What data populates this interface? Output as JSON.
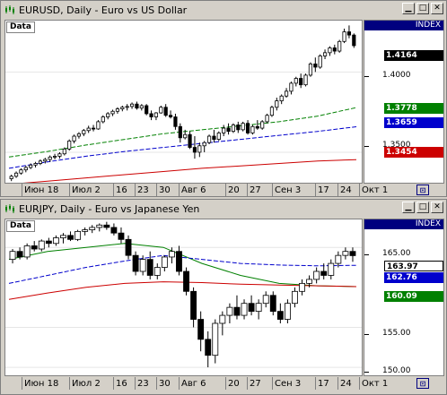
{
  "windows": [
    {
      "title": "EURUSD, Daily - Euro vs US Dollar",
      "data_label": "Data",
      "index_label": "INDEX",
      "price_ticks": [
        "1.4000",
        "1.3500"
      ],
      "price_labels": [
        {
          "value": "1.4164",
          "color": "#000000",
          "text_color": "#ffffff"
        },
        {
          "value": "1.3778",
          "color": "#008000",
          "text_color": "#ffffff"
        },
        {
          "value": "1.3659",
          "color": "#0000cc",
          "text_color": "#ffffff"
        },
        {
          "value": "1.3454",
          "color": "#cc0000",
          "text_color": "#ffffff"
        }
      ],
      "x_labels": [
        "Июн 18",
        "Июл 2",
        "16",
        "23",
        "30",
        "Авг 6",
        "20",
        "27",
        "Сен 3",
        "17",
        "24",
        "Окт 1"
      ],
      "chart_data": {
        "type": "candlestick",
        "ylim": [
          1.331,
          1.432
        ],
        "series": [
          {
            "name": "",
            "kind": "candles",
            "ohlc": [
              [
                1.3335,
                1.336,
                1.332,
                1.335
              ],
              [
                1.335,
                1.338,
                1.334,
                1.337
              ],
              [
                1.337,
                1.34,
                1.336,
                1.339
              ],
              [
                1.339,
                1.3415,
                1.3375,
                1.3405
              ],
              [
                1.3405,
                1.343,
                1.3395,
                1.342
              ],
              [
                1.342,
                1.344,
                1.3405,
                1.343
              ],
              [
                1.343,
                1.3455,
                1.342,
                1.3445
              ],
              [
                1.3445,
                1.3465,
                1.343,
                1.3455
              ],
              [
                1.3455,
                1.348,
                1.344,
                1.347
              ],
              [
                1.347,
                1.349,
                1.3455,
                1.3475
              ],
              [
                1.3475,
                1.35,
                1.346,
                1.349
              ],
              [
                1.349,
                1.353,
                1.348,
                1.352
              ],
              [
                1.352,
                1.358,
                1.351,
                1.357
              ],
              [
                1.357,
                1.361,
                1.3555,
                1.36
              ],
              [
                1.36,
                1.3625,
                1.3585,
                1.3615
              ],
              [
                1.3615,
                1.3645,
                1.36,
                1.3635
              ],
              [
                1.3635,
                1.3665,
                1.362,
                1.365
              ],
              [
                1.365,
                1.367,
                1.363,
                1.3645
              ],
              [
                1.3645,
                1.37,
                1.364,
                1.369
              ],
              [
                1.369,
                1.373,
                1.368,
                1.372
              ],
              [
                1.372,
                1.375,
                1.3705,
                1.374
              ],
              [
                1.374,
                1.3765,
                1.3725,
                1.3755
              ],
              [
                1.3755,
                1.378,
                1.374,
                1.377
              ],
              [
                1.377,
                1.379,
                1.3755,
                1.378
              ],
              [
                1.378,
                1.38,
                1.376,
                1.3785
              ],
              [
                1.3785,
                1.381,
                1.377,
                1.38
              ],
              [
                1.38,
                1.3815,
                1.3765,
                1.3775
              ],
              [
                1.3775,
                1.38,
                1.376,
                1.379
              ],
              [
                1.379,
                1.38,
                1.373,
                1.374
              ],
              [
                1.374,
                1.376,
                1.37,
                1.372
              ],
              [
                1.372,
                1.375,
                1.37,
                1.3745
              ],
              [
                1.3745,
                1.379,
                1.374,
                1.378
              ],
              [
                1.378,
                1.38,
                1.372,
                1.373
              ],
              [
                1.373,
                1.376,
                1.371,
                1.372
              ],
              [
                1.372,
                1.374,
                1.364,
                1.366
              ],
              [
                1.366,
                1.368,
                1.356,
                1.359
              ],
              [
                1.359,
                1.364,
                1.358,
                1.361
              ],
              [
                1.361,
                1.363,
                1.352,
                1.353
              ],
              [
                1.353,
                1.36,
                1.346,
                1.35
              ],
              [
                1.35,
                1.356,
                1.347,
                1.354
              ],
              [
                1.354,
                1.357,
                1.35,
                1.356
              ],
              [
                1.356,
                1.361,
                1.355,
                1.36
              ],
              [
                1.36,
                1.364,
                1.356,
                1.358
              ],
              [
                1.358,
                1.363,
                1.357,
                1.362
              ],
              [
                1.362,
                1.367,
                1.36,
                1.365
              ],
              [
                1.365,
                1.368,
                1.361,
                1.363
              ],
              [
                1.363,
                1.368,
                1.362,
                1.367
              ],
              [
                1.367,
                1.369,
                1.362,
                1.364
              ],
              [
                1.364,
                1.369,
                1.363,
                1.368
              ],
              [
                1.368,
                1.37,
                1.361,
                1.362
              ],
              [
                1.362,
                1.367,
                1.361,
                1.366
              ],
              [
                1.366,
                1.37,
                1.364,
                1.365
              ],
              [
                1.365,
                1.37,
                1.364,
                1.369
              ],
              [
                1.369,
                1.374,
                1.368,
                1.373
              ],
              [
                1.373,
                1.379,
                1.372,
                1.378
              ],
              [
                1.378,
                1.384,
                1.376,
                1.382
              ],
              [
                1.382,
                1.386,
                1.38,
                1.385
              ],
              [
                1.385,
                1.39,
                1.384,
                1.388
              ],
              [
                1.388,
                1.394,
                1.386,
                1.393
              ],
              [
                1.393,
                1.397,
                1.391,
                1.396
              ],
              [
                1.396,
                1.399,
                1.39,
                1.392
              ],
              [
                1.392,
                1.399,
                1.391,
                1.398
              ],
              [
                1.398,
                1.406,
                1.397,
                1.405
              ],
              [
                1.405,
                1.409,
                1.4,
                1.403
              ],
              [
                1.403,
                1.411,
                1.402,
                1.41
              ],
              [
                1.41,
                1.414,
                1.408,
                1.412
              ],
              [
                1.412,
                1.416,
                1.41,
                1.415
              ],
              [
                1.415,
                1.417,
                1.411,
                1.413
              ],
              [
                1.413,
                1.42,
                1.412,
                1.419
              ],
              [
                1.419,
                1.427,
                1.418,
                1.425
              ],
              [
                1.425,
                1.429,
                1.421,
                1.423
              ],
              [
                1.423,
                1.424,
                1.415,
                1.4164
              ]
            ]
          },
          {
            "name": "",
            "kind": "line",
            "color": "#008000",
            "dashed": true,
            "values": [
              1.347,
              1.3505,
              1.3545,
              1.358,
              1.3615,
              1.364,
              1.3665,
              1.369,
              1.3725,
              1.3778
            ]
          },
          {
            "name": "",
            "kind": "line",
            "color": "#0000cc",
            "dashed": true,
            "values": [
              1.34,
              1.344,
              1.3475,
              1.3505,
              1.353,
              1.3555,
              1.358,
              1.3605,
              1.363,
              1.3659
            ]
          },
          {
            "name": "",
            "kind": "line",
            "color": "#cc0000",
            "dashed": false,
            "values": [
              1.33,
              1.332,
              1.334,
              1.336,
              1.338,
              1.34,
              1.3415,
              1.343,
              1.3445,
              1.3454
            ]
          }
        ]
      }
    },
    {
      "title": "EURJPY, Daily - Euro vs Japanese Yen",
      "data_label": "Data",
      "index_label": "INDEX",
      "price_ticks": [
        "165.00",
        "155.00",
        "150.00"
      ],
      "price_labels": [
        {
          "value": "163.97",
          "color": "#ffffff",
          "text_color": "#000000"
        },
        {
          "value": "162.76",
          "color": "#0000cc",
          "text_color": "#ffffff"
        },
        {
          "value": "160.09",
          "color": "#008000",
          "text_color": "#ffffff"
        }
      ],
      "x_labels": [
        "Июн 18",
        "Июл 2",
        "16",
        "23",
        "30",
        "Авг 6",
        "20",
        "27",
        "Сен 3",
        "17",
        "24",
        "Окт 1"
      ],
      "chart_data": {
        "type": "candlestick",
        "ylim": [
          149.0,
          168.5
        ],
        "series": [
          {
            "name": "",
            "kind": "candles",
            "ohlc": [
              [
                163.5,
                164.8,
                163.0,
                164.5
              ],
              [
                164.5,
                165.0,
                163.5,
                163.8
              ],
              [
                163.8,
                165.5,
                163.5,
                165.2
              ],
              [
                165.2,
                165.8,
                164.5,
                164.8
              ],
              [
                164.8,
                166.0,
                164.5,
                165.8
              ],
              [
                165.8,
                166.2,
                165.0,
                165.5
              ],
              [
                165.5,
                166.5,
                165.2,
                166.2
              ],
              [
                166.2,
                166.8,
                165.5,
                166.5
              ],
              [
                166.5,
                167.0,
                165.8,
                166.0
              ],
              [
                166.0,
                167.2,
                165.8,
                167.0
              ],
              [
                167.0,
                167.5,
                166.5,
                167.2
              ],
              [
                167.2,
                167.8,
                166.8,
                167.5
              ],
              [
                167.5,
                168.0,
                167.0,
                167.8
              ],
              [
                167.8,
                168.2,
                167.2,
                167.5
              ],
              [
                167.5,
                168.0,
                166.5,
                166.8
              ],
              [
                166.8,
                167.5,
                165.5,
                166.0
              ],
              [
                166.0,
                166.5,
                163.5,
                164.0
              ],
              [
                164.0,
                164.5,
                161.5,
                162.0
              ],
              [
                162.0,
                164.0,
                161.5,
                163.5
              ],
              [
                163.5,
                164.5,
                161.0,
                161.5
              ],
              [
                161.5,
                163.0,
                161.0,
                162.5
              ],
              [
                162.5,
                164.0,
                162.0,
                163.8
              ],
              [
                163.8,
                165.0,
                163.0,
                164.5
              ],
              [
                164.5,
                165.2,
                161.5,
                162.0
              ],
              [
                162.0,
                162.5,
                159.0,
                159.5
              ],
              [
                159.5,
                160.0,
                155.0,
                156.0
              ],
              [
                156.0,
                157.0,
                152.0,
                153.5
              ],
              [
                153.5,
                154.5,
                150.0,
                151.5
              ],
              [
                151.5,
                156.0,
                150.5,
                155.5
              ],
              [
                155.5,
                157.0,
                154.0,
                156.5
              ],
              [
                156.5,
                158.0,
                155.5,
                157.5
              ],
              [
                157.5,
                159.0,
                156.0,
                156.5
              ],
              [
                156.5,
                158.5,
                156.0,
                158.0
              ],
              [
                158.0,
                159.0,
                156.5,
                157.0
              ],
              [
                157.0,
                158.5,
                156.0,
                158.0
              ],
              [
                158.0,
                159.5,
                157.5,
                159.0
              ],
              [
                159.0,
                159.5,
                156.5,
                157.0
              ],
              [
                157.0,
                158.0,
                155.5,
                156.0
              ],
              [
                156.0,
                158.5,
                155.5,
                158.0
              ],
              [
                158.0,
                160.0,
                157.5,
                159.5
              ],
              [
                159.5,
                161.0,
                159.0,
                160.5
              ],
              [
                160.5,
                161.5,
                160.0,
                161.0
              ],
              [
                161.0,
                162.5,
                160.5,
                162.0
              ],
              [
                162.0,
                163.0,
                161.0,
                161.5
              ],
              [
                161.5,
                163.5,
                161.0,
                163.0
              ],
              [
                163.0,
                164.5,
                162.5,
                164.0
              ],
              [
                164.0,
                165.0,
                163.5,
                164.5
              ],
              [
                164.5,
                165.0,
                163.2,
                163.97
              ]
            ]
          },
          {
            "name": "",
            "kind": "line",
            "color": "#008000",
            "dashed": false,
            "values": [
              163.5,
              164.5,
              165.0,
              165.5,
              165.0,
              163.0,
              161.5,
              160.5,
              160.2,
              160.09
            ]
          },
          {
            "name": "",
            "kind": "line",
            "color": "#0000cc",
            "dashed": true,
            "values": [
              160.5,
              161.5,
              162.5,
              163.3,
              164.0,
              163.5,
              163.0,
              162.8,
              162.7,
              162.76
            ]
          },
          {
            "name": "",
            "kind": "line",
            "color": "#cc0000",
            "dashed": false,
            "values": [
              158.5,
              159.3,
              160.0,
              160.5,
              160.7,
              160.6,
              160.4,
              160.3,
              160.2,
              160.1
            ]
          }
        ]
      }
    }
  ]
}
